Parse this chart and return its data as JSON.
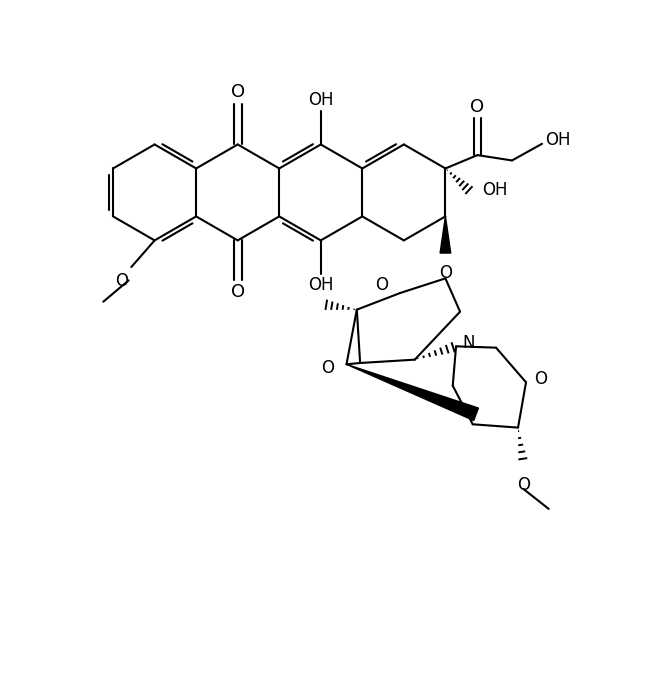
{
  "bg_color": "#ffffff",
  "lw": 1.5,
  "fig_w": 6.69,
  "fig_h": 6.78,
  "dpi": 100,
  "xlim": [
    0,
    10
  ],
  "ylim": [
    0,
    10
  ]
}
